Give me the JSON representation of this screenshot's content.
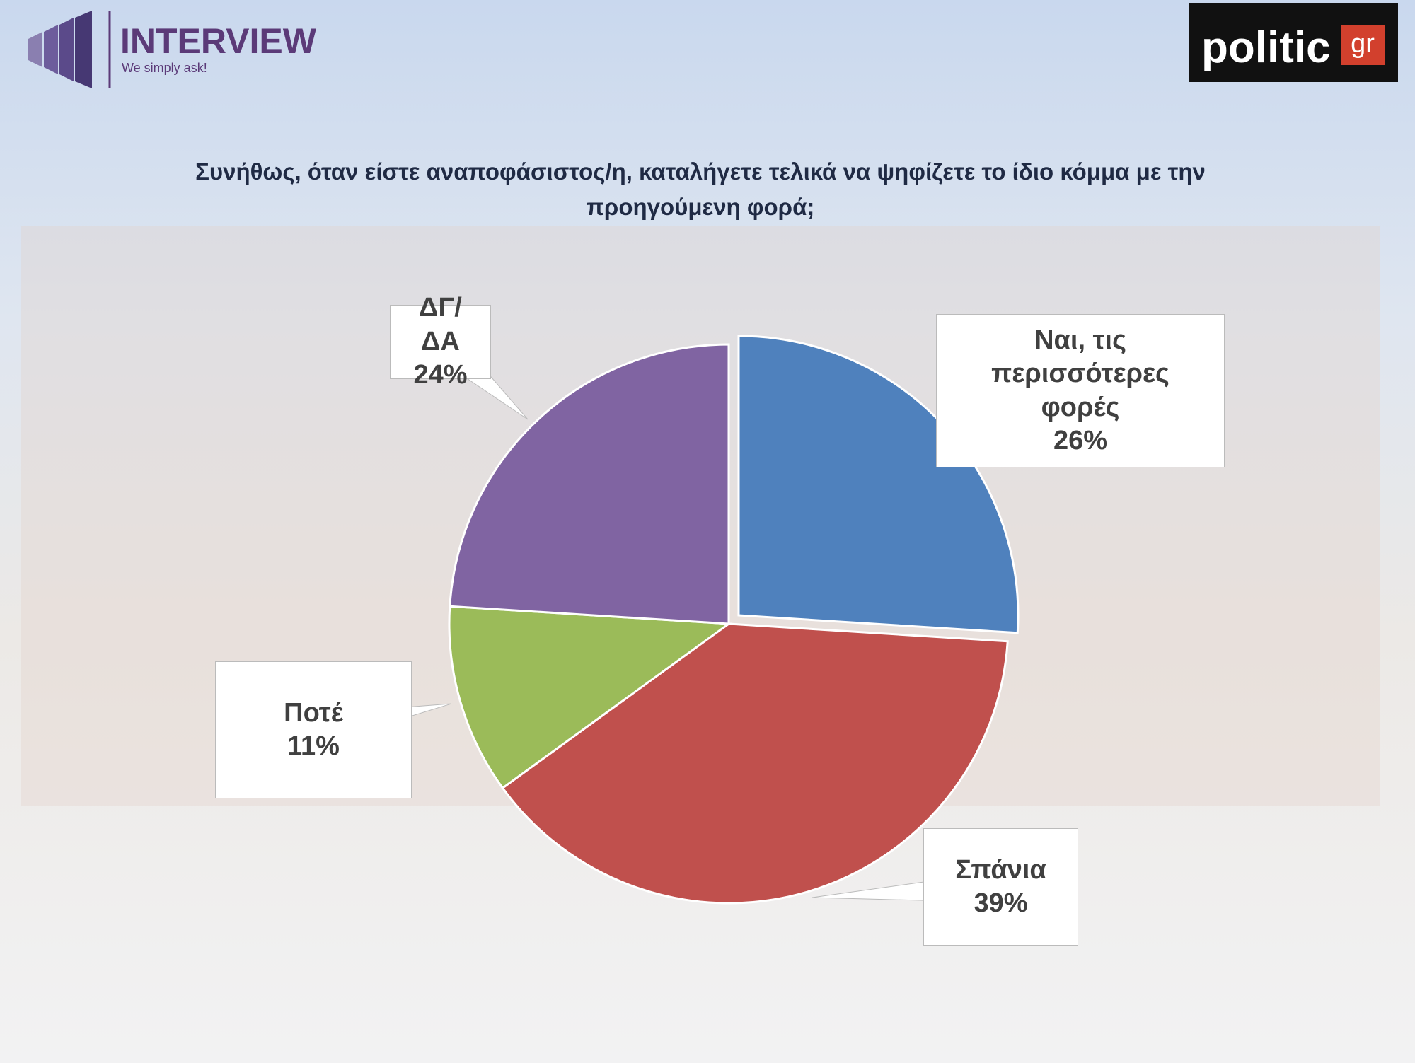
{
  "logos": {
    "brand": "INTERVIEW",
    "tagline": "We simply ask!",
    "site": "politic",
    "site_suffix": "gr"
  },
  "chart_data": {
    "type": "pie",
    "title": "Συνήθως, όταν είστε αναποφάσιστος/η, καταλήγετε τελικά να ψηφίζετε το ίδιο κόμμα με την προηγούμενη φορά;",
    "categories": [
      "Ναι, τις περισσότερες φορές",
      "Σπάνια",
      "Ποτέ",
      "ΔΓ/ΔΑ"
    ],
    "values": [
      26,
      39,
      11,
      24
    ],
    "value_labels": [
      "26%",
      "39%",
      "11%",
      "24%"
    ],
    "colors": [
      "#4f81bd",
      "#c0504d",
      "#9bbb59",
      "#8064a2"
    ]
  }
}
